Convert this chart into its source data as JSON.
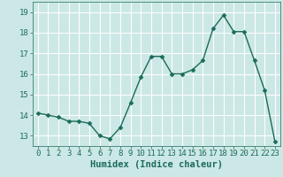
{
  "x": [
    0,
    1,
    2,
    3,
    4,
    5,
    6,
    7,
    8,
    9,
    10,
    11,
    12,
    13,
    14,
    15,
    16,
    17,
    18,
    19,
    20,
    21,
    22,
    23
  ],
  "y": [
    14.1,
    14.0,
    13.9,
    13.7,
    13.7,
    13.6,
    13.0,
    12.85,
    13.4,
    14.6,
    15.85,
    16.85,
    16.85,
    16.0,
    16.0,
    16.2,
    16.65,
    18.2,
    18.85,
    18.05,
    18.05,
    16.65,
    15.2,
    12.7
  ],
  "xlabel": "Humidex (Indice chaleur)",
  "ylim": [
    12.5,
    19.5
  ],
  "xlim": [
    -0.5,
    23.5
  ],
  "yticks": [
    13,
    14,
    15,
    16,
    17,
    18,
    19
  ],
  "xticks": [
    0,
    1,
    2,
    3,
    4,
    5,
    6,
    7,
    8,
    9,
    10,
    11,
    12,
    13,
    14,
    15,
    16,
    17,
    18,
    19,
    20,
    21,
    22,
    23
  ],
  "line_color": "#1a6b5a",
  "marker_color": "#1a6b5a",
  "bg_color": "#cce8e6",
  "grid_color": "#ffffff",
  "xlabel_fontsize": 7.5,
  "tick_fontsize": 6.5,
  "line_width": 1.0,
  "marker_size": 2.5
}
